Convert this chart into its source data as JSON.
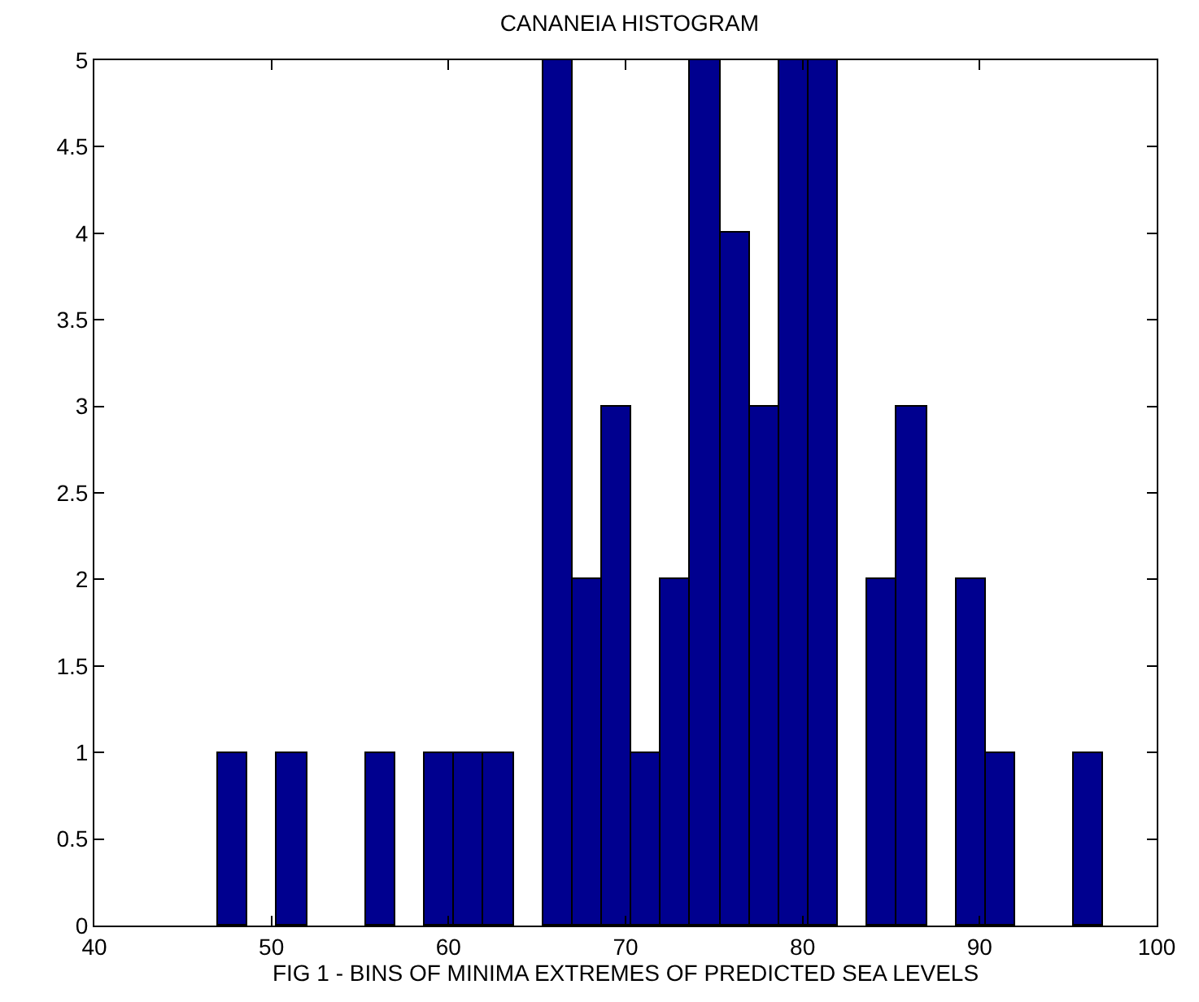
{
  "chart_data": {
    "type": "histogram",
    "title": "CANANEIA HISTOGRAM",
    "xlabel": "FIG 1 - BINS OF MINIMA EXTREMES OF PREDICTED SEA LEVELS",
    "bins": [
      47,
      48.67,
      50.33,
      52,
      53.67,
      55.33,
      57,
      58.67,
      60.33,
      62,
      63.67,
      65.33,
      67,
      68.67,
      70.33,
      72,
      73.67,
      75.33,
      77,
      78.67,
      80.33,
      82,
      83.67,
      85.33,
      87,
      88.67,
      90.33,
      92,
      93.67,
      95.33,
      97
    ],
    "values": [
      1,
      0,
      1,
      0,
      0,
      1,
      0,
      1,
      1,
      1,
      0,
      5,
      2,
      3,
      1,
      2,
      5,
      4,
      3,
      5,
      5,
      0,
      2,
      3,
      0,
      2,
      1,
      0,
      0,
      1
    ],
    "color": "#00008f",
    "xlim": [
      40,
      100
    ],
    "xticks": [
      40,
      50,
      60,
      70,
      80,
      90,
      100
    ],
    "ylim": [
      0,
      5
    ],
    "yticks": [
      0,
      0.5,
      1,
      1.5,
      2,
      2.5,
      3,
      3.5,
      4,
      4.5,
      5
    ]
  }
}
